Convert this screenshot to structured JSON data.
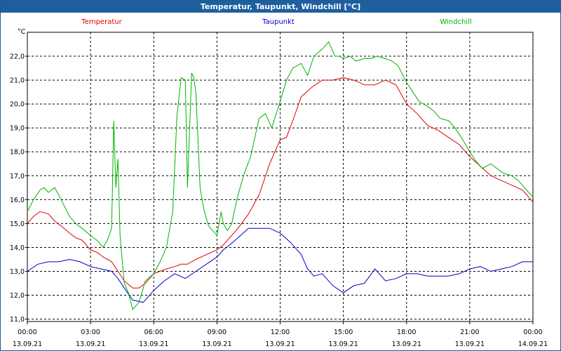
{
  "window": {
    "title": "Temperatur, Taupunkt, Windchill [°C]"
  },
  "chart_data": {
    "type": "line",
    "title": "Temperatur, Taupunkt, Windchill [°C]",
    "ylabel": "°C",
    "ylim": [
      10.9,
      23.0
    ],
    "xlim": [
      0,
      24
    ],
    "grid": true,
    "legend_position": "top",
    "x_ticks": [
      {
        "time": "00:00",
        "date": "13.09.21"
      },
      {
        "time": "03:00",
        "date": "13.09.21"
      },
      {
        "time": "06:00",
        "date": "13.09.21"
      },
      {
        "time": "09:00",
        "date": "13.09.21"
      },
      {
        "time": "12:00",
        "date": "13.09.21"
      },
      {
        "time": "15:00",
        "date": "13.09.21"
      },
      {
        "time": "18:00",
        "date": "13.09.21"
      },
      {
        "time": "21:00",
        "date": "13.09.21"
      },
      {
        "time": "00:00",
        "date": "14.09.21"
      }
    ],
    "y_ticks": [
      "11,0",
      "12,0",
      "13,0",
      "14,0",
      "15,0",
      "16,0",
      "17,0",
      "18,0",
      "19,0",
      "20,0",
      "21,0",
      "22,0"
    ],
    "series": [
      {
        "name": "Temperatur",
        "color": "#e00000",
        "x": [
          0,
          0.3,
          0.6,
          1.0,
          1.3,
          1.6,
          2.0,
          2.3,
          2.6,
          2.8,
          3.0,
          3.3,
          3.6,
          4.0,
          4.3,
          4.6,
          5.0,
          5.3,
          5.6,
          6.0,
          6.3,
          6.6,
          7.0,
          7.3,
          7.6,
          8.0,
          8.5,
          9.0,
          9.3,
          9.6,
          10.0,
          10.5,
          11.0,
          11.5,
          12.0,
          12.3,
          12.6,
          13.0,
          13.5,
          14.0,
          14.5,
          15.0,
          15.5,
          16.0,
          16.5,
          17.0,
          17.5,
          18.0,
          18.5,
          19.0,
          19.5,
          20.0,
          20.5,
          21.0,
          21.5,
          22.0,
          22.5,
          23.0,
          23.5,
          24.0
        ],
        "values": [
          15.0,
          15.3,
          15.5,
          15.4,
          15.1,
          14.9,
          14.6,
          14.4,
          14.3,
          14.1,
          13.9,
          13.8,
          13.6,
          13.4,
          13.0,
          12.6,
          12.3,
          12.3,
          12.5,
          12.9,
          13.0,
          13.1,
          13.2,
          13.3,
          13.3,
          13.5,
          13.7,
          13.9,
          14.1,
          14.4,
          14.8,
          15.4,
          16.2,
          17.5,
          18.5,
          18.6,
          19.3,
          20.3,
          20.7,
          21.0,
          21.0,
          21.1,
          21.0,
          20.8,
          20.8,
          21.0,
          20.8,
          20.0,
          19.6,
          19.1,
          18.9,
          18.6,
          18.3,
          17.8,
          17.4,
          17.0,
          16.8,
          16.6,
          16.4,
          15.9
        ]
      },
      {
        "name": "Taupunkt",
        "color": "#0000c8",
        "x": [
          0,
          0.5,
          1.0,
          1.5,
          2.0,
          2.5,
          3.0,
          3.5,
          4.0,
          4.3,
          4.6,
          5.0,
          5.5,
          6.0,
          6.5,
          7.0,
          7.5,
          8.0,
          8.5,
          9.0,
          9.3,
          9.6,
          10.0,
          10.5,
          11.0,
          11.5,
          12.0,
          12.5,
          13.0,
          13.3,
          13.6,
          14.0,
          14.5,
          15.0,
          15.5,
          16.0,
          16.5,
          17.0,
          17.5,
          18.0,
          18.5,
          19.0,
          19.5,
          20.0,
          20.5,
          21.0,
          21.5,
          22.0,
          22.5,
          23.0,
          23.5,
          24.0
        ],
        "values": [
          13.0,
          13.3,
          13.4,
          13.4,
          13.5,
          13.4,
          13.2,
          13.1,
          13.0,
          12.7,
          12.3,
          11.8,
          11.7,
          12.2,
          12.6,
          12.9,
          12.7,
          13.0,
          13.3,
          13.6,
          13.9,
          14.1,
          14.4,
          14.8,
          14.8,
          14.8,
          14.6,
          14.2,
          13.7,
          13.1,
          12.8,
          12.9,
          12.4,
          12.1,
          12.4,
          12.5,
          13.1,
          12.6,
          12.7,
          12.9,
          12.9,
          12.8,
          12.8,
          12.8,
          12.9,
          13.1,
          13.2,
          13.0,
          13.1,
          13.2,
          13.4,
          13.4
        ]
      },
      {
        "name": "Windchill",
        "color": "#00b400",
        "x": [
          0,
          0.3,
          0.6,
          0.8,
          1.0,
          1.3,
          1.6,
          2.0,
          2.3,
          2.6,
          3.0,
          3.3,
          3.6,
          3.8,
          4.0,
          4.1,
          4.2,
          4.3,
          4.4,
          4.5,
          4.6,
          4.8,
          5.0,
          5.3,
          5.6,
          6.0,
          6.3,
          6.6,
          6.9,
          7.1,
          7.3,
          7.5,
          7.6,
          7.8,
          7.9,
          8.0,
          8.2,
          8.4,
          8.6,
          9.0,
          9.2,
          9.3,
          9.5,
          9.7,
          10.0,
          10.3,
          10.6,
          11.0,
          11.3,
          11.6,
          12.0,
          12.3,
          12.6,
          13.0,
          13.3,
          13.6,
          14.0,
          14.3,
          14.6,
          14.8,
          15.0,
          15.3,
          15.6,
          16.0,
          16.3,
          16.6,
          17.0,
          17.3,
          17.6,
          18.0,
          18.3,
          18.6,
          19.0,
          19.3,
          19.6,
          20.0,
          20.3,
          20.6,
          21.0,
          21.3,
          21.6,
          22.0,
          22.3,
          22.6,
          23.0,
          23.3,
          23.6,
          24.0
        ],
        "values": [
          15.5,
          16.0,
          16.4,
          16.5,
          16.3,
          16.5,
          16.0,
          15.3,
          15.0,
          14.8,
          14.5,
          14.3,
          14.0,
          14.3,
          14.8,
          19.3,
          16.5,
          17.7,
          14.5,
          13.5,
          12.5,
          12.1,
          11.4,
          11.7,
          12.6,
          12.9,
          13.4,
          14.0,
          15.5,
          19.5,
          21.1,
          21.0,
          16.5,
          21.3,
          21.1,
          20.5,
          16.5,
          15.5,
          14.9,
          14.5,
          15.5,
          15.0,
          14.7,
          15.0,
          16.2,
          17.1,
          17.8,
          19.4,
          19.6,
          19.0,
          20.1,
          21.0,
          21.5,
          21.7,
          21.2,
          22.0,
          22.3,
          22.6,
          22.0,
          22.0,
          21.9,
          22.0,
          21.8,
          21.9,
          21.9,
          22.0,
          21.9,
          21.8,
          21.6,
          20.9,
          20.5,
          20.1,
          19.9,
          19.7,
          19.4,
          19.3,
          19.0,
          18.6,
          18.0,
          17.6,
          17.3,
          17.5,
          17.3,
          17.1,
          17.0,
          16.8,
          16.5,
          16.1
        ]
      }
    ]
  }
}
